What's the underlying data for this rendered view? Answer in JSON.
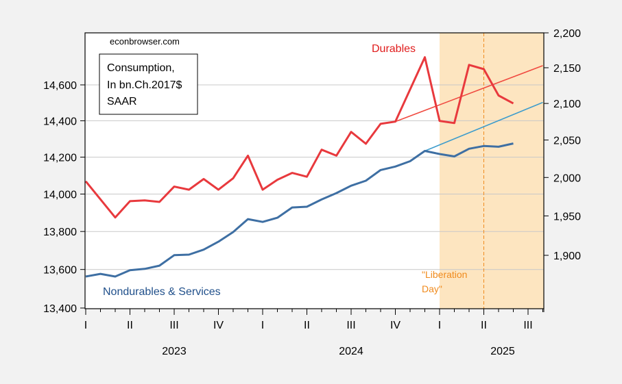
{
  "chart_data": {
    "type": "line",
    "title": "",
    "source_label": "econbrowser.com",
    "note_box": [
      "Consumption,",
      "In bn.Ch.2017$",
      "SAAR"
    ],
    "x": [
      "2023-01",
      "2023-02",
      "2023-03",
      "2023-04",
      "2023-05",
      "2023-06",
      "2023-07",
      "2023-08",
      "2023-09",
      "2023-10",
      "2023-11",
      "2023-12",
      "2024-01",
      "2024-02",
      "2024-03",
      "2024-04",
      "2024-05",
      "2024-06",
      "2024-07",
      "2024-08",
      "2024-09",
      "2024-10",
      "2024-11",
      "2024-12",
      "2025-01",
      "2025-02",
      "2025-03",
      "2025-04",
      "2025-05",
      "2025-06",
      "2025-07",
      "2025-08"
    ],
    "x_range": [
      "2023-01",
      "2025-08"
    ],
    "quarter_ticks": [
      "I",
      "II",
      "III",
      "IV",
      "I",
      "II",
      "III",
      "IV",
      "I",
      "II",
      "III"
    ],
    "year_labels": [
      "2023",
      "2024",
      "2025"
    ],
    "left_axis": {
      "scale": "log",
      "ylim": [
        13400,
        14800
      ],
      "ticks": [
        13400,
        13600,
        13800,
        14000,
        14200,
        14400,
        14600
      ],
      "tick_labels": [
        "13,400",
        "13,600",
        "13,800",
        "14,000",
        "14,200",
        "14,400",
        "14,600"
      ]
    },
    "right_axis": {
      "scale": "log",
      "ylim": [
        1860,
        2200
      ],
      "ticks": [
        1900,
        1950,
        2000,
        2050,
        2100,
        2150,
        2200
      ],
      "tick_labels": [
        "1,900",
        "1,950",
        "2,000",
        "2,050",
        "2,100",
        "2,150",
        "2,200"
      ]
    },
    "grid": true,
    "series": [
      {
        "name": "Durables",
        "axis": "right",
        "color": "#e8393d",
        "label": "Durables",
        "values": [
          1995,
          null,
          1948,
          1969,
          1970,
          1968,
          1988,
          1984,
          1998,
          1984,
          1999,
          2029,
          1984,
          1997,
          2006,
          2001,
          2037,
          2029,
          2061,
          2045,
          2072,
          2075,
          null,
          2165,
          2076,
          2073,
          2154,
          2148,
          2111,
          2100,
          null,
          null
        ]
      },
      {
        "name": "Nondurables & Services",
        "axis": "left",
        "color": "#3e6fa3",
        "label": "Nondurables & Services",
        "values": [
          13563,
          13577,
          13563,
          13596,
          13603,
          13620,
          13675,
          13678,
          13704,
          13746,
          13797,
          13866,
          13851,
          13873,
          13928,
          13932,
          13971,
          14005,
          14045,
          14072,
          14130,
          14149,
          14178,
          14234,
          14217,
          14204,
          14246,
          14261,
          14257,
          14275,
          null,
          null
        ]
      },
      {
        "name": "Durables trend",
        "axis": "right",
        "color": "#f04a40",
        "points": [
          [
            "2024-10",
            2075
          ],
          [
            "2025-08",
            2153
          ]
        ]
      },
      {
        "name": "Nondurables & Services trend",
        "axis": "left",
        "color": "#3d9ccc",
        "points": [
          [
            "2024-12",
            14234
          ],
          [
            "2025-08",
            14502
          ]
        ]
      }
    ],
    "shaded_region": {
      "from": "2025-01",
      "to": "2025-08",
      "color": "#fde5c0"
    },
    "vline": {
      "at": "2025-04",
      "color": "#f08a1c",
      "style": "dashed"
    },
    "annotations": [
      {
        "text": "\"Liberation",
        "color": "#f08a1c"
      },
      {
        "text": "Day\"",
        "color": "#f08a1c"
      }
    ]
  }
}
